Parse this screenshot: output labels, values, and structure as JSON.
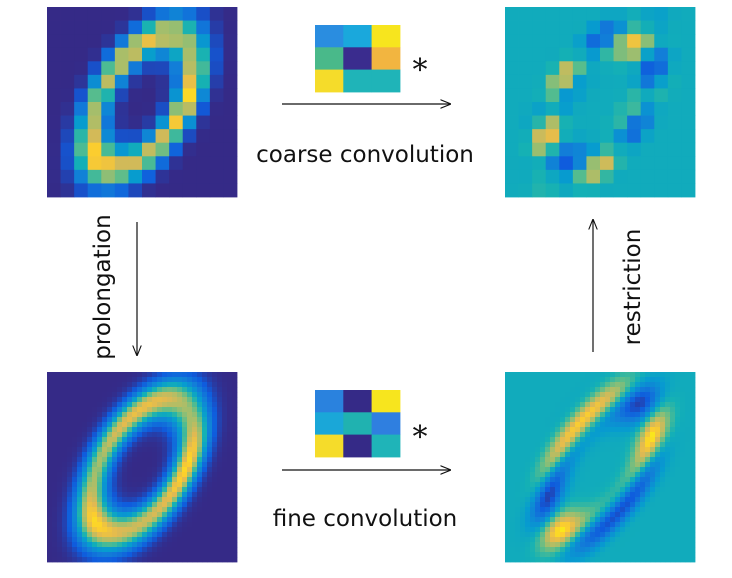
{
  "top_label": "coarse convolution",
  "bottom_label": "fine convolution",
  "left_label": "prolongation",
  "right_label": "restriction",
  "operator_symbols": [
    "*",
    "*"
  ]
}
